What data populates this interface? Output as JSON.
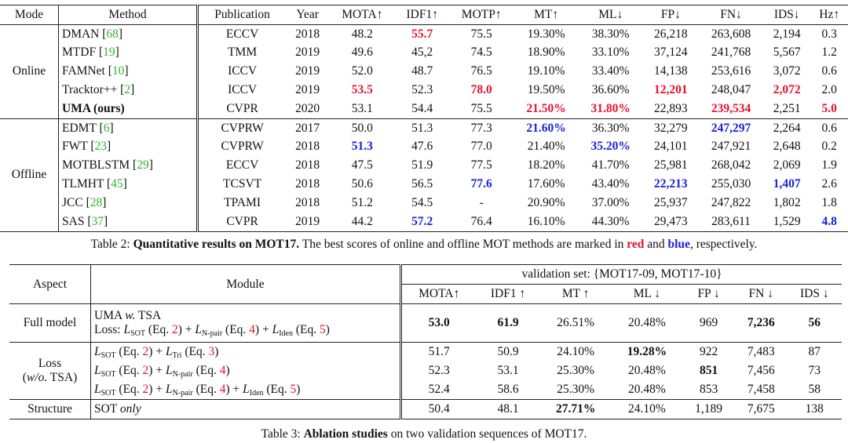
{
  "table2": {
    "header": [
      "Mode",
      "Method",
      "Publication",
      "Year",
      "MOTA↑",
      "IDF1↑",
      "MOTP↑",
      "MT↑",
      "ML↓",
      "FP↓",
      "FN↓",
      "IDS↓",
      "Hz↑"
    ],
    "groups": [
      {
        "mode": "Online",
        "rows": [
          [
            [
              "DMAN [",
              {
                "t": "68",
                "s": "green"
              },
              "]"
            ],
            "ECCV",
            "2018",
            "48.2",
            [
              {
                "t": "55.7",
                "s": "red"
              }
            ],
            "75.5",
            "19.30%",
            "38.30%",
            "26,218",
            "263,608",
            "2,194",
            "0.3"
          ],
          [
            [
              "MTDF [",
              {
                "t": "19",
                "s": "green"
              },
              "]"
            ],
            "TMM",
            "2019",
            "49.6",
            "45,2",
            "74.5",
            "18.90%",
            "33.10%",
            "37,124",
            "241,768",
            "5,567",
            "1.2"
          ],
          [
            [
              "FAMNet [",
              {
                "t": "10",
                "s": "green"
              },
              "]"
            ],
            "ICCV",
            "2019",
            "52.0",
            "48.7",
            "76.5",
            "19.10%",
            "33.40%",
            "14,138",
            "253,616",
            "3,072",
            "0.6"
          ],
          [
            [
              "Tracktor++ [",
              {
                "t": "2",
                "s": "green"
              },
              "]"
            ],
            "ICCV",
            "2019",
            [
              {
                "t": "53.5",
                "s": "red"
              }
            ],
            "52.3",
            [
              {
                "t": "78.0",
                "s": "red"
              }
            ],
            "19.50%",
            "36.60%",
            [
              {
                "t": "12,201",
                "s": "red"
              }
            ],
            "248,047",
            [
              {
                "t": "2,072",
                "s": "red"
              }
            ],
            "2.0"
          ],
          [
            [
              {
                "t": "UMA (ours)",
                "s": "bold"
              }
            ],
            "CVPR",
            "2020",
            "53.1",
            "54.4",
            "75.5",
            [
              {
                "t": "21.50%",
                "s": "red"
              }
            ],
            [
              {
                "t": "31.80%",
                "s": "red"
              }
            ],
            "22,893",
            [
              {
                "t": "239,534",
                "s": "red"
              }
            ],
            "2,251",
            [
              {
                "t": "5.0",
                "s": "red"
              }
            ]
          ]
        ]
      },
      {
        "mode": "Offline",
        "rows": [
          [
            [
              "EDMT [",
              {
                "t": "6",
                "s": "green"
              },
              "]"
            ],
            "CVPRW",
            "2017",
            "50.0",
            "51.3",
            "77.3",
            [
              {
                "t": "21.60%",
                "s": "blue"
              }
            ],
            "36.30%",
            "32,279",
            [
              {
                "t": "247,297",
                "s": "blue"
              }
            ],
            "2,264",
            "0.6"
          ],
          [
            [
              "FWT [",
              {
                "t": "23",
                "s": "green"
              },
              "]"
            ],
            "CVPRW",
            "2018",
            [
              {
                "t": "51.3",
                "s": "blue"
              }
            ],
            "47.6",
            "77.0",
            "21.40%",
            [
              {
                "t": "35.20%",
                "s": "blue"
              }
            ],
            "24,101",
            "247,921",
            "2,648",
            "0.2"
          ],
          [
            [
              "MOTBLSTM [",
              {
                "t": "29",
                "s": "green"
              },
              "]"
            ],
            "ECCV",
            "2018",
            "47.5",
            "51.9",
            "77.5",
            "18.20%",
            "41.70%",
            "25,981",
            "268,042",
            "2,069",
            "1.9"
          ],
          [
            [
              "TLMHT [",
              {
                "t": "45",
                "s": "green"
              },
              "]"
            ],
            "TCSVT",
            "2018",
            "50.6",
            "56.5",
            [
              {
                "t": "77.6",
                "s": "blue"
              }
            ],
            "17.60%",
            "43.40%",
            [
              {
                "t": "22,213",
                "s": "blue"
              }
            ],
            "255,030",
            [
              {
                "t": "1,407",
                "s": "blue"
              }
            ],
            "2.6"
          ],
          [
            [
              "JCC [",
              {
                "t": "28",
                "s": "green"
              },
              "]"
            ],
            "TPAMI",
            "2018",
            "51.2",
            "54.5",
            "-",
            "20.90%",
            "37.00%",
            "25,937",
            "247,822",
            "1,802",
            "1.8"
          ],
          [
            [
              "SAS [",
              {
                "t": "37",
                "s": "green"
              },
              "]"
            ],
            "CVPR",
            "2019",
            "44.2",
            [
              {
                "t": "57.2",
                "s": "blue"
              }
            ],
            "76.4",
            "16.10%",
            "44.30%",
            "29,473",
            "283,611",
            "1,529",
            [
              {
                "t": "4.8",
                "s": "blue"
              }
            ]
          ]
        ]
      }
    ],
    "caption": [
      "Table 2: ",
      {
        "t": "Quantitative results on MOT17.",
        "s": "bold"
      },
      " The best scores of online and offline MOT methods are marked in ",
      {
        "t": "red",
        "s": "red"
      },
      " and ",
      {
        "t": "blue",
        "s": "blue"
      },
      ", respectively."
    ]
  },
  "table3": {
    "aspect_header": "Aspect",
    "module_header": "Module",
    "set_header": "validation set: {MOT17-09, MOT17-10}",
    "metrics": [
      "MOTA↑",
      "IDF1 ↑",
      "MT ↑",
      "ML ↓",
      "FP ↓",
      "FN ↓",
      "IDS ↓"
    ],
    "groups": [
      {
        "aspect": "Full model",
        "rows": [
          {
            "module": [
              "UMA ",
              {
                "t": "w.",
                "s": "i"
              },
              " TSA",
              {
                "s": "br"
              },
              "Loss: ",
              {
                "t": "L",
                "s": "i"
              },
              {
                "t": "SOT",
                "s": "sub"
              },
              " (Eq. ",
              {
                "t": "2",
                "s": "ref"
              },
              ") + ",
              {
                "t": "L",
                "s": "i"
              },
              {
                "t": "N-pair",
                "s": "sub"
              },
              " (Eq. ",
              {
                "t": "4",
                "s": "ref"
              },
              ") + ",
              {
                "t": "L",
                "s": "i"
              },
              {
                "t": "Iden",
                "s": "sub"
              },
              " (Eq. ",
              {
                "t": "5",
                "s": "ref"
              },
              ")"
            ],
            "values": [
              [
                {
                  "t": "53.0",
                  "s": "bold"
                }
              ],
              [
                {
                  "t": "61.9",
                  "s": "bold"
                }
              ],
              "26.51%",
              "20.48%",
              "969",
              [
                {
                  "t": "7,236",
                  "s": "bold"
                }
              ],
              [
                {
                  "t": "56",
                  "s": "bold"
                }
              ]
            ]
          }
        ]
      },
      {
        "aspect": [
          "Loss",
          {
            "s": "br"
          },
          "(",
          {
            "t": "w/o.",
            "s": "i"
          },
          " TSA)"
        ],
        "rows": [
          {
            "module": [
              {
                "t": "L",
                "s": "i"
              },
              {
                "t": "SOT",
                "s": "sub"
              },
              " (Eq. ",
              {
                "t": "2",
                "s": "ref"
              },
              ") + ",
              {
                "t": "L",
                "s": "i"
              },
              {
                "t": "Tri",
                "s": "sub"
              },
              " (Eq. ",
              {
                "t": "3",
                "s": "ref"
              },
              ")"
            ],
            "values": [
              "51.7",
              "50.9",
              "24.10%",
              [
                {
                  "t": "19.28%",
                  "s": "bold"
                }
              ],
              "922",
              "7,483",
              "87"
            ]
          },
          {
            "module": [
              {
                "t": "L",
                "s": "i"
              },
              {
                "t": "SOT",
                "s": "sub"
              },
              " (Eq. ",
              {
                "t": "2",
                "s": "ref"
              },
              ") + ",
              {
                "t": "L",
                "s": "i"
              },
              {
                "t": "N-pair",
                "s": "sub"
              },
              " (Eq. ",
              {
                "t": "4",
                "s": "ref"
              },
              ")"
            ],
            "values": [
              "52.3",
              "53.1",
              "25.30%",
              "20.48%",
              [
                {
                  "t": "851",
                  "s": "bold"
                }
              ],
              "7,456",
              "73"
            ]
          },
          {
            "module": [
              {
                "t": "L",
                "s": "i"
              },
              {
                "t": "SOT",
                "s": "sub"
              },
              " (Eq. ",
              {
                "t": "2",
                "s": "ref"
              },
              ") + ",
              {
                "t": "L",
                "s": "i"
              },
              {
                "t": "N-pair",
                "s": "sub"
              },
              " (Eq. ",
              {
                "t": "4",
                "s": "ref"
              },
              ") + ",
              {
                "t": "L",
                "s": "i"
              },
              {
                "t": "Iden",
                "s": "sub"
              },
              " (Eq. ",
              {
                "t": "5",
                "s": "ref"
              },
              ")"
            ],
            "values": [
              "52.4",
              "58.6",
              "25.30%",
              "20.48%",
              "853",
              "7,458",
              "58"
            ]
          }
        ]
      },
      {
        "aspect": "Structure",
        "rows": [
          {
            "module": [
              "SOT ",
              {
                "t": "only",
                "s": "i"
              }
            ],
            "values": [
              "50.4",
              "48.1",
              [
                {
                  "t": "27.71%",
                  "s": "bold"
                }
              ],
              "24.10%",
              "1,189",
              "7,675",
              "138"
            ]
          }
        ]
      }
    ],
    "caption": [
      "Table 3: ",
      {
        "t": "Ablation studies",
        "s": "bold"
      },
      " on two validation sequences of MOT17."
    ]
  }
}
